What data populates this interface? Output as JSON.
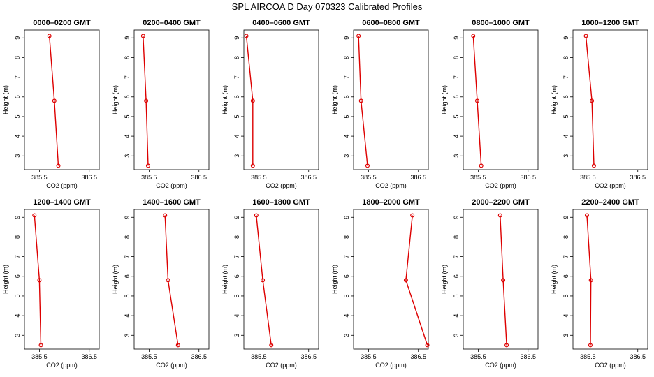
{
  "title": "SPL AIRCOA D  Day 070323  Calibrated Profiles",
  "colors": {
    "line": "#dd0000",
    "marker": "#dd0000",
    "axis": "#000000"
  },
  "chart_data": {
    "type": "line",
    "title": "SPL AIRCOA D  Day 070323  Calibrated Profiles",
    "xlabel": "CO2 (ppm)",
    "ylabel": "Height (m)",
    "xlim": [
      385.2,
      386.7
    ],
    "ylim": [
      2.3,
      9.4
    ],
    "xticks": [
      385.5,
      386.5
    ],
    "xtick_labels": [
      "385.5",
      "386.5"
    ],
    "yticks": [
      3,
      4,
      5,
      6,
      7,
      8,
      9
    ],
    "grid": false,
    "panels": [
      {
        "title": "0000–0200 GMT",
        "x": [
          385.7,
          385.8,
          385.88
        ],
        "y": [
          9.1,
          5.8,
          2.5
        ]
      },
      {
        "title": "0200–0400 GMT",
        "x": [
          385.38,
          385.44,
          385.48
        ],
        "y": [
          9.1,
          5.8,
          2.5
        ]
      },
      {
        "title": "0400–0600 GMT",
        "x": [
          385.25,
          385.38,
          385.38
        ],
        "y": [
          9.1,
          5.8,
          2.5
        ]
      },
      {
        "title": "0600–0800 GMT",
        "x": [
          385.3,
          385.35,
          385.48
        ],
        "y": [
          9.1,
          5.8,
          2.5
        ]
      },
      {
        "title": "0800–1000 GMT",
        "x": [
          385.4,
          385.48,
          385.56
        ],
        "y": [
          9.1,
          5.8,
          2.5
        ]
      },
      {
        "title": "1000–1200 GMT",
        "x": [
          385.46,
          385.58,
          385.62
        ],
        "y": [
          9.1,
          5.8,
          2.5
        ]
      },
      {
        "title": "1200–1400 GMT",
        "x": [
          385.4,
          385.5,
          385.53
        ],
        "y": [
          9.1,
          5.8,
          2.5
        ]
      },
      {
        "title": "1400–1600 GMT",
        "x": [
          385.82,
          385.88,
          386.08
        ],
        "y": [
          9.1,
          5.8,
          2.5
        ]
      },
      {
        "title": "1600–1800 GMT",
        "x": [
          385.45,
          385.58,
          385.75
        ],
        "y": [
          9.1,
          5.8,
          2.5
        ]
      },
      {
        "title": "1800–2000 GMT",
        "x": [
          386.38,
          386.25,
          386.68
        ],
        "y": [
          9.1,
          5.8,
          2.5
        ]
      },
      {
        "title": "2000–2200 GMT",
        "x": [
          385.94,
          386.0,
          386.07
        ],
        "y": [
          9.1,
          5.8,
          2.5
        ]
      },
      {
        "title": "2200–2400 GMT",
        "x": [
          385.48,
          385.56,
          385.55
        ],
        "y": [
          9.1,
          5.8,
          2.5
        ]
      }
    ]
  }
}
